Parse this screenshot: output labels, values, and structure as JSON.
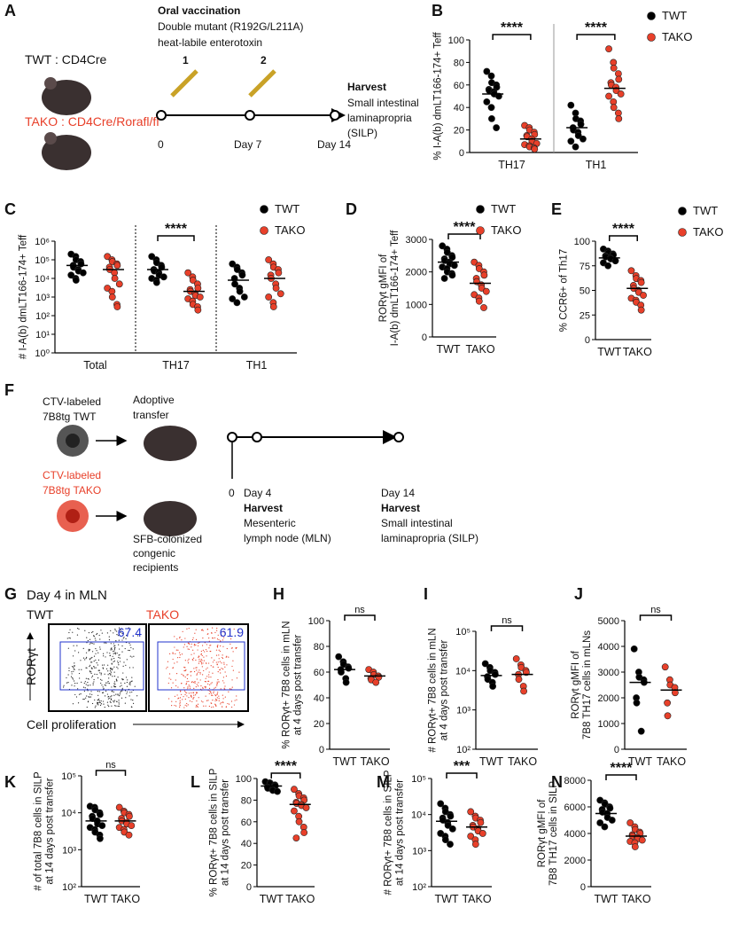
{
  "panel_a": {
    "letter": "A",
    "genotype_wt": "TWT : CD4Cre",
    "genotype_ako": "TAKO : CD4Cre/Rorafl/fl",
    "title": "Oral vaccination",
    "line1": "Double mutant (R192G/L211A)",
    "line2": "heat-labile enterotoxin",
    "doses": [
      "1",
      "2"
    ],
    "timepoints": [
      "0",
      "Day 7",
      "Day 14"
    ],
    "harvest": "Harvest",
    "harvest_site": [
      "Small intestinal",
      "laminapropria",
      "(SILP)"
    ]
  },
  "panel_f": {
    "letter": "F",
    "wt_lines": [
      "CTV-labeled",
      "7B8tg TWT"
    ],
    "ako_lines": [
      "CTV-labeled",
      "7B8tg TAKO"
    ],
    "transfer": [
      "Adoptive",
      "transfer"
    ],
    "recipients": [
      "SFB-colonized",
      "congenic",
      "recipients"
    ],
    "timepoints": [
      "0",
      "Day 4",
      "Day 14"
    ],
    "harvest1": [
      "Harvest",
      "Mesenteric",
      "lymph node (MLN)"
    ],
    "harvest2": [
      "Harvest",
      "Small intestinal",
      "laminapropria (SILP)"
    ]
  },
  "panel_g": {
    "letter": "G",
    "title": "Day 4 in MLN",
    "left": "TWT",
    "right": "TAKO",
    "gates": [
      "67.4",
      "61.9"
    ],
    "y_label": "RORγt",
    "x_label": "Cell proliferation"
  },
  "chart_data": [
    {
      "type": "dot",
      "letter": "B",
      "ylabel": [
        "% I-A(b) dmLT166-174+ Teff"
      ],
      "ylim": [
        0,
        100
      ],
      "yticks": [
        0,
        20,
        40,
        60,
        80,
        100
      ],
      "categories": [
        "TH17",
        "TH1"
      ],
      "separator": "solid",
      "legend": true,
      "series": [
        {
          "name": "TWT",
          "color": "#000000",
          "values": [
            [
              72,
              68,
              62,
              60,
              58,
              56,
              55,
              54,
              52,
              50,
              45,
              40,
              30,
              22
            ],
            [
              42,
              35,
              30,
              28,
              25,
              22,
              20,
              18,
              15,
              12,
              10,
              5
            ]
          ],
          "means": [
            52,
            22
          ]
        },
        {
          "name": "TAKO",
          "color": "#e8402a",
          "values": [
            [
              24,
              22,
              20,
              18,
              16,
              15,
              14,
              12,
              10,
              8,
              7,
              6,
              5,
              4,
              3
            ],
            [
              92,
              80,
              75,
              70,
              65,
              62,
              60,
              58,
              55,
              52,
              50,
              45,
              40,
              35,
              30
            ]
          ],
          "means": [
            12,
            57
          ]
        }
      ],
      "sig": [
        {
          "label": "****",
          "category": 0
        },
        {
          "label": "****",
          "category": 1
        }
      ]
    },
    {
      "type": "dot",
      "letter": "C",
      "ylabel": [
        "# I-A(b) dmLT166-174+ Teff"
      ],
      "log": true,
      "ylim": [
        1,
        1000000
      ],
      "yticks": [
        {
          "value": 1,
          "label": "10⁰"
        },
        {
          "value": 10,
          "label": "10¹"
        },
        {
          "value": 100,
          "label": "10²"
        },
        {
          "value": 1000,
          "label": "10³"
        },
        {
          "value": 10000,
          "label": "10⁴"
        },
        {
          "value": 100000,
          "label": "10⁵"
        },
        {
          "value": 1000000,
          "label": "10⁶"
        }
      ],
      "categories": [
        "Total",
        "TH17",
        "TH1"
      ],
      "separator": "dotted",
      "legend": true,
      "series": [
        {
          "name": "TWT",
          "color": "#000000",
          "values": [
            [
              200000,
              150000,
              100000,
              80000,
              60000,
              50000,
              40000,
              30000,
              25000,
              20000,
              15000,
              10000,
              8000
            ],
            [
              150000,
              100000,
              70000,
              50000,
              40000,
              30000,
              25000,
              20000,
              15000,
              12000,
              10000,
              8000,
              6000
            ],
            [
              60000,
              40000,
              30000,
              20000,
              15000,
              10000,
              5000,
              3000,
              2000,
              1000,
              800,
              500
            ]
          ],
          "means": [
            50000,
            30000,
            8000
          ]
        },
        {
          "name": "TAKO",
          "color": "#e8402a",
          "values": [
            [
              150000,
              100000,
              80000,
              60000,
              50000,
              40000,
              30000,
              20000,
              10000,
              5000,
              3000,
              2000,
              1000,
              400,
              300
            ],
            [
              20000,
              12000,
              8000,
              5000,
              3000,
              2500,
              2000,
              1500,
              1200,
              1000,
              800,
              600,
              400,
              300,
              200
            ],
            [
              100000,
              60000,
              40000,
              30000,
              20000,
              15000,
              10000,
              5000,
              3000,
              1500,
              1000,
              500,
              300
            ]
          ],
          "means": [
            30000,
            2000,
            10000
          ]
        }
      ],
      "sig": [
        {
          "label": "****",
          "category": 1
        }
      ]
    },
    {
      "type": "dot",
      "letter": "D",
      "ylabel": [
        "RORγt gMFI of",
        "I-A(b) dmLT166-174+ Teff"
      ],
      "ylim": [
        0,
        3000
      ],
      "yticks": [
        0,
        1000,
        2000,
        3000
      ],
      "categories": [
        "TWT",
        "TAKO"
      ],
      "legend": true,
      "series": [
        {
          "name": "TWT",
          "color": "#000000",
          "values": [
            [
              2800,
              2700,
              2600,
              2500,
              2450,
              2400,
              2350,
              2300,
              2250,
              2200,
              2150,
              2100,
              2000,
              1950,
              1900,
              1800
            ],
            null
          ],
          "means": [
            2300,
            null
          ]
        },
        {
          "name": "TAKO",
          "color": "#e8402a",
          "values": [
            null,
            [
              2300,
              2200,
              2100,
              2000,
              1900,
              1800,
              1700,
              1600,
              1500,
              1400,
              1300,
              1200,
              1100,
              900
            ]
          ],
          "means": [
            null,
            1650
          ]
        }
      ],
      "sig": [
        {
          "label": "****"
        }
      ]
    },
    {
      "type": "dot",
      "letter": "E",
      "ylabel": [
        "% CCR6+ of Th17"
      ],
      "ylim": [
        0,
        100
      ],
      "yticks": [
        0,
        25,
        50,
        75,
        100
      ],
      "categories": [
        "TWT",
        "TAKO"
      ],
      "legend": true,
      "series": [
        {
          "name": "TWT",
          "color": "#000000",
          "values": [
            [
              92,
              90,
              88,
              87,
              86,
              85,
              84,
              83,
              82,
              80,
              78,
              75
            ],
            null
          ],
          "means": [
            83,
            null
          ]
        },
        {
          "name": "TAKO",
          "color": "#e8402a",
          "values": [
            null,
            [
              70,
              65,
              62,
              60,
              58,
              55,
              52,
              50,
              48,
              45,
              42,
              40,
              38,
              35,
              30
            ]
          ],
          "means": [
            null,
            52
          ]
        }
      ],
      "sig": [
        {
          "label": "****"
        }
      ]
    },
    {
      "type": "dot",
      "letter": "H",
      "ylabel": [
        "% RORγt+ 7B8 cells in mLN",
        "at 4 days post transfer"
      ],
      "ylim": [
        0,
        100
      ],
      "yticks": [
        0,
        20,
        40,
        60,
        80,
        100
      ],
      "categories": [
        "TWT",
        "TAKO"
      ],
      "colors": [
        "#000000",
        "#e8402a"
      ],
      "values": [
        [
          72,
          68,
          66,
          64,
          63,
          62,
          60,
          55,
          52
        ],
        [
          62,
          60,
          58,
          57,
          56,
          55,
          54,
          52
        ]
      ],
      "means": [
        62,
        57
      ],
      "sig": [
        {
          "label": "ns"
        }
      ]
    },
    {
      "type": "dot",
      "letter": "I",
      "ylabel": [
        "# RORγt+ 7B8 cells in mLN",
        "at 4 days post transfer"
      ],
      "log": true,
      "ylim": [
        100,
        100000
      ],
      "yticks": [
        {
          "value": 100,
          "label": "10²"
        },
        {
          "value": 1000,
          "label": "10³"
        },
        {
          "value": 10000,
          "label": "10⁴"
        },
        {
          "value": 100000,
          "label": "10⁵"
        }
      ],
      "categories": [
        "TWT",
        "TAKO"
      ],
      "colors": [
        "#000000",
        "#e8402a"
      ],
      "values": [
        [
          15000,
          12000,
          10000,
          9000,
          8000,
          7000,
          6000,
          5000,
          4000
        ],
        [
          20000,
          14000,
          12000,
          10000,
          9000,
          8000,
          6000,
          4000,
          3000
        ]
      ],
      "means": [
        7500,
        8000
      ],
      "sig": [
        {
          "label": "ns"
        }
      ]
    },
    {
      "type": "dot",
      "letter": "J",
      "ylabel": [
        "RORγt gMFI of",
        "7B8 TH17 cells in mLNs"
      ],
      "ylim": [
        0,
        5000
      ],
      "yticks": [
        0,
        1000,
        2000,
        3000,
        4000,
        5000
      ],
      "categories": [
        "TWT",
        "TAKO"
      ],
      "colors": [
        "#000000",
        "#e8402a"
      ],
      "values": [
        [
          3900,
          3000,
          2800,
          2700,
          2600,
          2000,
          1800,
          700
        ],
        [
          3200,
          2700,
          2500,
          2400,
          2200,
          1800,
          1300
        ]
      ],
      "means": [
        2600,
        2300
      ],
      "sig": [
        {
          "label": "ns"
        }
      ]
    },
    {
      "type": "dot",
      "letter": "K",
      "ylabel": [
        "# of total 7B8 cells in SILP",
        "at 14 days post transfer"
      ],
      "log": true,
      "ylim": [
        100,
        100000
      ],
      "yticks": [
        {
          "value": 100,
          "label": "10²"
        },
        {
          "value": 1000,
          "label": "10³"
        },
        {
          "value": 10000,
          "label": "10⁴"
        },
        {
          "value": 100000,
          "label": "10⁵"
        }
      ],
      "categories": [
        "TWT",
        "TAKO"
      ],
      "colors": [
        "#000000",
        "#e8402a"
      ],
      "values": [
        [
          15000,
          14000,
          12000,
          10000,
          9000,
          8000,
          7000,
          6000,
          5000,
          4500,
          4000,
          3500,
          3000,
          2500,
          2000
        ],
        [
          14000,
          11000,
          10000,
          9000,
          8000,
          7000,
          6000,
          5500,
          5000,
          4500,
          4000,
          3500,
          3000,
          2500
        ]
      ],
      "means": [
        6000,
        6000
      ],
      "sig": [
        {
          "label": "ns"
        }
      ]
    },
    {
      "type": "dot",
      "letter": "L",
      "ylabel": [
        "% RORγt+ 7B8 cells in SILP",
        "at 14 days post transfer"
      ],
      "ylim": [
        0,
        100
      ],
      "yticks": [
        0,
        20,
        40,
        60,
        80,
        100
      ],
      "categories": [
        "TWT",
        "TAKO"
      ],
      "colors": [
        "#000000",
        "#e8402a"
      ],
      "values": [
        [
          97,
          96,
          95,
          94,
          93,
          92,
          91,
          90,
          89,
          88
        ],
        [
          90,
          86,
          84,
          82,
          80,
          78,
          77,
          76,
          75,
          73,
          70,
          65,
          60,
          55,
          50,
          45
        ]
      ],
      "means": [
        93,
        76
      ],
      "sig": [
        {
          "label": "****"
        }
      ]
    },
    {
      "type": "dot",
      "letter": "M",
      "ylabel": [
        "# RORγt+ 7B8 cells in SILP",
        "at 14 days post transfer"
      ],
      "log": true,
      "ylim": [
        100,
        100000
      ],
      "yticks": [
        {
          "value": 100,
          "label": "10²"
        },
        {
          "value": 1000,
          "label": "10³"
        },
        {
          "value": 10000,
          "label": "10⁴"
        },
        {
          "value": 100000,
          "label": "10⁵"
        }
      ],
      "categories": [
        "TWT",
        "TAKO"
      ],
      "colors": [
        "#000000",
        "#e8402a"
      ],
      "values": [
        [
          20000,
          15000,
          12000,
          10000,
          9000,
          8000,
          7000,
          6000,
          5000,
          4000,
          3000,
          2500,
          2000,
          1500
        ],
        [
          12000,
          9000,
          8000,
          7000,
          6000,
          5000,
          4500,
          4000,
          3500,
          3000,
          2500,
          2000,
          1500
        ]
      ],
      "means": [
        6500,
        4500
      ],
      "sig": [
        {
          "label": "***"
        }
      ]
    },
    {
      "type": "dot",
      "letter": "N",
      "ylabel": [
        "RORγt gMFI of",
        "7B8 TH17 cells in SILP"
      ],
      "ylim": [
        0,
        8000
      ],
      "yticks": [
        0,
        2000,
        4000,
        6000,
        8000
      ],
      "categories": [
        "TWT",
        "TAKO"
      ],
      "colors": [
        "#000000",
        "#e8402a"
      ],
      "values": [
        [
          6500,
          6300,
          6200,
          6000,
          5900,
          5800,
          5600,
          5500,
          5200,
          5000,
          4800,
          4500
        ],
        [
          4800,
          4500,
          4300,
          4100,
          4000,
          3900,
          3800,
          3700,
          3600,
          3500,
          3400,
          3300,
          3000
        ]
      ],
      "means": [
        5500,
        3800
      ],
      "sig": [
        {
          "label": "****"
        }
      ]
    }
  ]
}
